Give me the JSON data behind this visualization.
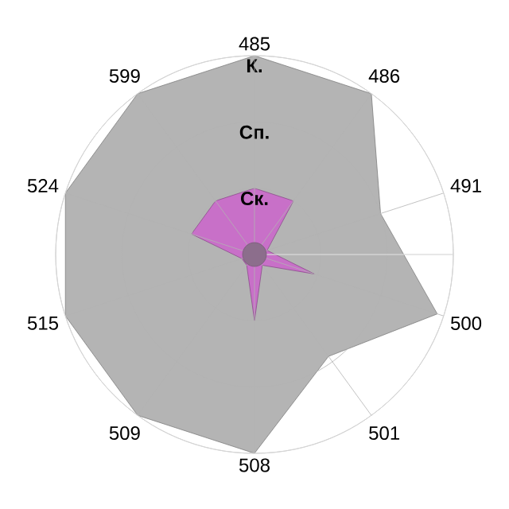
{
  "chart_data": {
    "type": "radar",
    "categories": [
      "485",
      "486",
      "491",
      "500",
      "501",
      "508",
      "509",
      "515",
      "524",
      "599"
    ],
    "series": [
      {
        "color": "#b4b4b4",
        "values": [
          3,
          3,
          2,
          2.9,
          1.9,
          3,
          3,
          3,
          3,
          3
        ]
      },
      {
        "color": "#c870c8",
        "values": [
          1,
          1,
          0.2,
          0.95,
          0.2,
          1,
          0.2,
          0.2,
          1,
          1
        ]
      }
    ],
    "ylim": [
      0,
      3
    ],
    "yticks": [
      {
        "value": 1,
        "label": "Ск."
      },
      {
        "value": 2,
        "label": "Сп."
      },
      {
        "value": 3,
        "label": "К."
      }
    ],
    "grid": true
  }
}
